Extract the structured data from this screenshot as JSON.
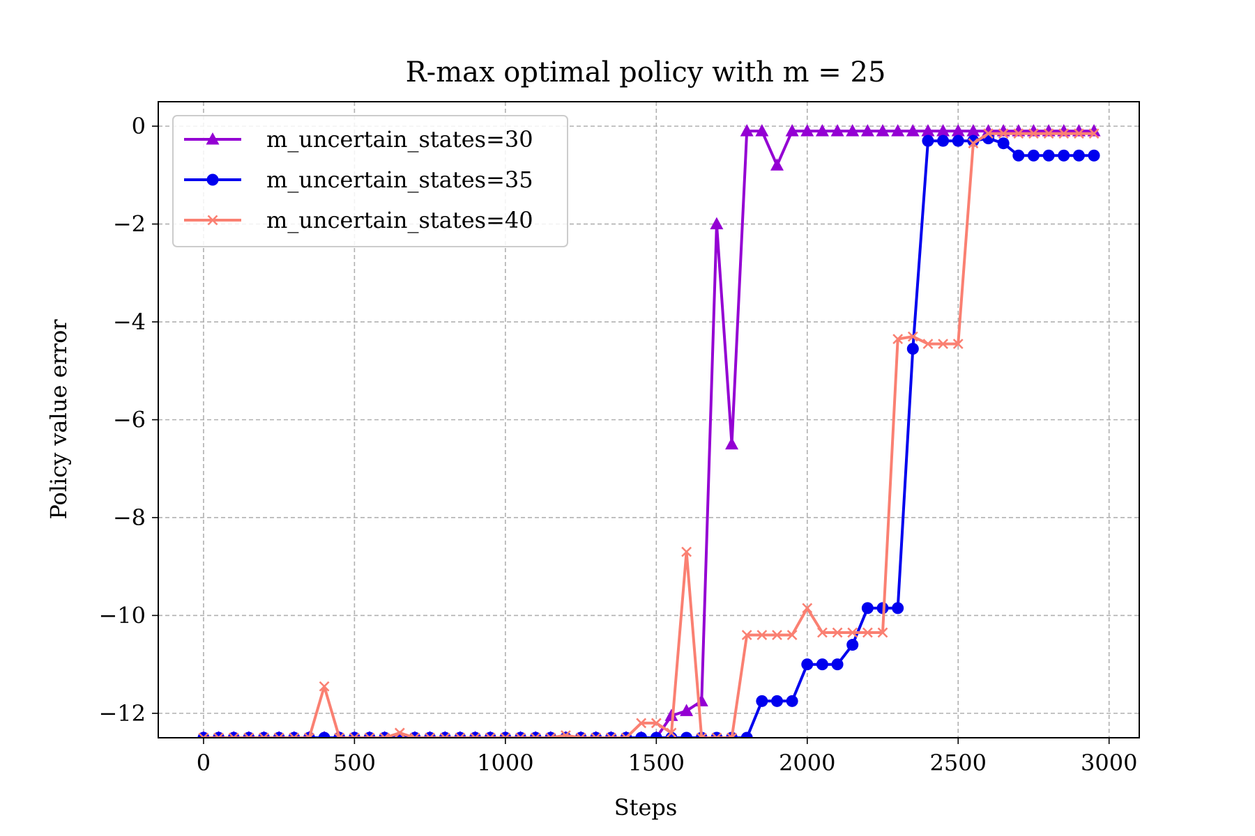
{
  "chart_data": {
    "type": "line",
    "title": "R-max optimal policy with m = 25",
    "xlabel": "Steps",
    "ylabel": "Policy value error",
    "xlim": [
      -150,
      3100
    ],
    "ylim": [
      -12.5,
      0.5
    ],
    "xticks": [
      0,
      500,
      1000,
      1500,
      2000,
      2500,
      3000
    ],
    "xtick_labels": [
      "0",
      "500",
      "1000",
      "1500",
      "2000",
      "2500",
      "3000"
    ],
    "yticks": [
      0,
      -2,
      -4,
      -6,
      -8,
      -10,
      -12
    ],
    "ytick_labels": [
      "0",
      "−2",
      "−4",
      "−6",
      "−8",
      "−10",
      "−12"
    ],
    "grid": true,
    "legend_position": "upper left",
    "series": [
      {
        "name": "m_uncertain_states=30",
        "color": "#9400D3",
        "marker": "triangle",
        "x": [
          0,
          50,
          100,
          150,
          200,
          250,
          300,
          350,
          400,
          450,
          500,
          550,
          600,
          650,
          700,
          750,
          800,
          850,
          900,
          950,
          1000,
          1050,
          1100,
          1150,
          1200,
          1250,
          1300,
          1350,
          1400,
          1450,
          1500,
          1550,
          1600,
          1650,
          1700,
          1750,
          1800,
          1850,
          1900,
          1950,
          2000,
          2050,
          2100,
          2150,
          2200,
          2250,
          2300,
          2350,
          2400,
          2450,
          2500,
          2550,
          2600,
          2650,
          2700,
          2750,
          2800,
          2850,
          2900,
          2950
        ],
        "y": [
          -12.5,
          -12.5,
          -12.5,
          -12.5,
          -12.5,
          -12.5,
          -12.5,
          -12.5,
          -12.5,
          -12.5,
          -12.5,
          -12.5,
          -12.5,
          -12.5,
          -12.5,
          -12.5,
          -12.5,
          -12.5,
          -12.5,
          -12.5,
          -12.5,
          -12.5,
          -12.5,
          -12.5,
          -12.5,
          -12.5,
          -12.5,
          -12.5,
          -12.5,
          -12.5,
          -12.5,
          -12.05,
          -11.95,
          -11.75,
          -2.0,
          -6.5,
          -0.1,
          -0.1,
          -0.8,
          -0.1,
          -0.1,
          -0.1,
          -0.1,
          -0.1,
          -0.1,
          -0.1,
          -0.1,
          -0.1,
          -0.1,
          -0.1,
          -0.1,
          -0.1,
          -0.1,
          -0.1,
          -0.1,
          -0.1,
          -0.1,
          -0.1,
          -0.1,
          -0.1
        ]
      },
      {
        "name": "m_uncertain_states=35",
        "color": "#0000EE",
        "marker": "circle",
        "x": [
          0,
          50,
          100,
          150,
          200,
          250,
          300,
          350,
          400,
          450,
          500,
          550,
          600,
          650,
          700,
          750,
          800,
          850,
          900,
          950,
          1000,
          1050,
          1100,
          1150,
          1200,
          1250,
          1300,
          1350,
          1400,
          1450,
          1500,
          1550,
          1600,
          1650,
          1700,
          1750,
          1800,
          1850,
          1900,
          1950,
          2000,
          2050,
          2100,
          2150,
          2200,
          2250,
          2300,
          2350,
          2400,
          2450,
          2500,
          2550,
          2600,
          2650,
          2700,
          2750,
          2800,
          2850,
          2900,
          2950
        ],
        "y": [
          -12.5,
          -12.5,
          -12.5,
          -12.5,
          -12.5,
          -12.5,
          -12.5,
          -12.5,
          -12.5,
          -12.5,
          -12.5,
          -12.5,
          -12.5,
          -12.5,
          -12.5,
          -12.5,
          -12.5,
          -12.5,
          -12.5,
          -12.5,
          -12.5,
          -12.5,
          -12.5,
          -12.5,
          -12.5,
          -12.5,
          -12.5,
          -12.5,
          -12.5,
          -12.5,
          -12.5,
          -12.5,
          -12.5,
          -12.5,
          -12.5,
          -12.5,
          -12.5,
          -11.75,
          -11.75,
          -11.75,
          -11.0,
          -11.0,
          -11.0,
          -10.6,
          -9.85,
          -9.85,
          -9.85,
          -4.55,
          -0.3,
          -0.3,
          -0.3,
          -0.3,
          -0.25,
          -0.35,
          -0.6,
          -0.6,
          -0.6,
          -0.6,
          -0.6,
          -0.6
        ]
      },
      {
        "name": "m_uncertain_states=40",
        "color": "#FA8072",
        "marker": "x",
        "x": [
          0,
          50,
          100,
          150,
          200,
          250,
          300,
          350,
          400,
          450,
          500,
          550,
          600,
          650,
          700,
          750,
          800,
          850,
          900,
          950,
          1000,
          1050,
          1100,
          1150,
          1200,
          1250,
          1300,
          1350,
          1400,
          1450,
          1500,
          1550,
          1600,
          1650,
          1700,
          1750,
          1800,
          1850,
          1900,
          1950,
          2000,
          2050,
          2100,
          2150,
          2200,
          2250,
          2300,
          2350,
          2400,
          2450,
          2500,
          2550,
          2600,
          2650,
          2700,
          2750,
          2800,
          2850,
          2900,
          2950
        ],
        "y": [
          -12.5,
          -12.5,
          -12.5,
          -12.5,
          -12.5,
          -12.5,
          -12.5,
          -12.5,
          -11.45,
          -12.5,
          -12.5,
          -12.5,
          -12.5,
          -12.4,
          -12.5,
          -12.5,
          -12.5,
          -12.5,
          -12.5,
          -12.5,
          -12.5,
          -12.5,
          -12.5,
          -12.5,
          -12.45,
          -12.5,
          -12.5,
          -12.5,
          -12.5,
          -12.2,
          -12.2,
          -12.4,
          -8.7,
          -12.5,
          -12.5,
          -12.5,
          -10.4,
          -10.4,
          -10.4,
          -10.4,
          -9.85,
          -10.35,
          -10.35,
          -10.35,
          -10.35,
          -10.35,
          -4.35,
          -4.3,
          -4.45,
          -4.45,
          -4.45,
          -0.35,
          -0.15,
          -0.15,
          -0.15,
          -0.15,
          -0.15,
          -0.15,
          -0.15,
          -0.15
        ]
      }
    ]
  }
}
